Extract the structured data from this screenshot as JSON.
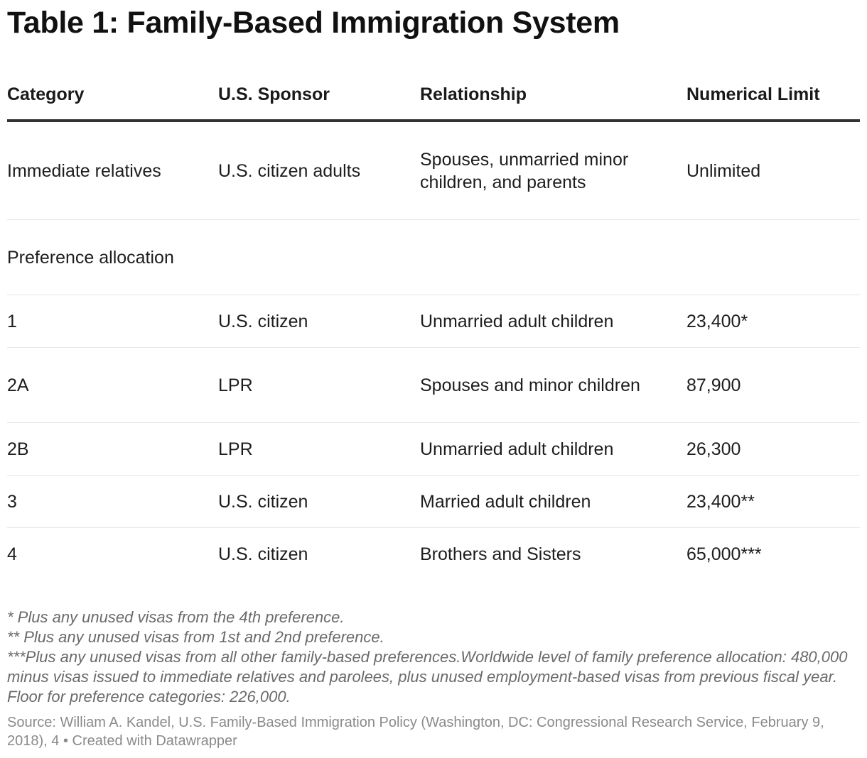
{
  "title": "Table 1: Family-Based Immigration System",
  "table": {
    "headers": [
      "Category",
      "U.S. Sponsor",
      "Relationship",
      "Numerical Limit"
    ],
    "rows": [
      [
        "Immediate relatives",
        "U.S. citizen adults",
        "Spouses, unmarried minor children, and parents",
        "Unlimited"
      ],
      [
        "Preference allocation",
        "",
        "",
        ""
      ],
      [
        "1",
        "U.S. citizen",
        "Unmarried adult children",
        "23,400*"
      ],
      [
        "2A",
        "LPR",
        "Spouses and minor children",
        "87,900"
      ],
      [
        "2B",
        "LPR",
        "Unmarried adult children",
        "26,300"
      ],
      [
        "3",
        "U.S. citizen",
        "Married adult children",
        "23,400**"
      ],
      [
        "4",
        "U.S. citizen",
        "Brothers and Sisters",
        "65,000***"
      ]
    ]
  },
  "footnotes": {
    "note1": "* Plus any unused visas from the 4th preference.",
    "note2": "** Plus any unused visas from 1st and 2nd preference.",
    "note3": "***Plus any unused visas from all other family-based preferences.Worldwide level of family preference allocation: 480,000 minus visas issued to immediate relatives and parolees, plus unused employment-based visas from previous fiscal year. Floor for preference categories: 226,000."
  },
  "source": "Source: William A. Kandel, U.S. Family-Based Immigration Policy (Washington, DC: Congressional Research Service, February 9, 2018), 4 • Created with Datawrapper"
}
